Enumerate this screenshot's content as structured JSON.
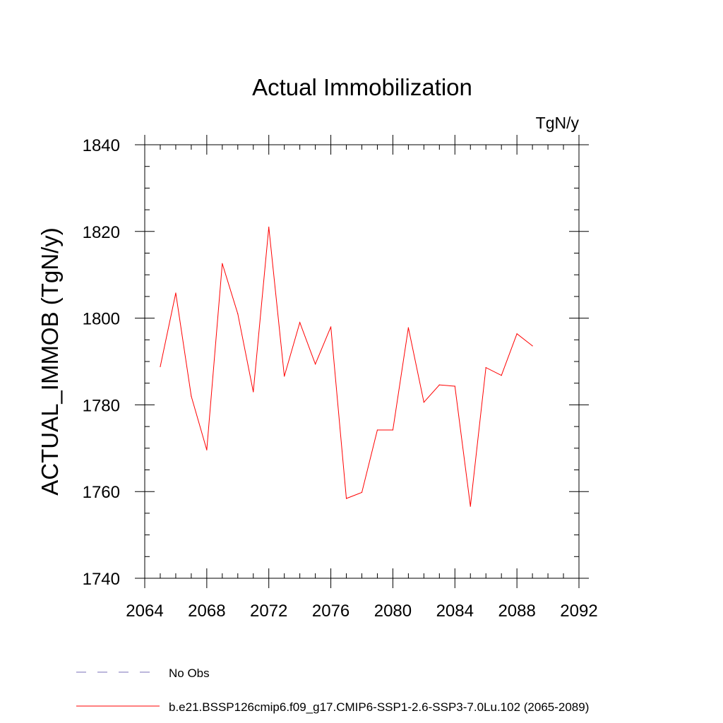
{
  "chart_data": {
    "type": "line",
    "title": "Actual Immobilization",
    "units_label": "TgN/y",
    "ylabel": "ACTUAL_IMMOB  (TgN/y)",
    "xlabel": "",
    "xlim": [
      2064,
      2092
    ],
    "ylim": [
      1740,
      1840
    ],
    "x_ticks": [
      2064,
      2068,
      2072,
      2076,
      2080,
      2084,
      2088,
      2092
    ],
    "x_tick_labels": [
      "2064",
      "2068",
      "2072",
      "2076",
      "2080",
      "2084",
      "2088",
      "2092"
    ],
    "x_minor_step": 1,
    "y_ticks": [
      1740,
      1760,
      1780,
      1800,
      1820,
      1840
    ],
    "y_tick_labels": [
      "1740",
      "1760",
      "1780",
      "1800",
      "1820",
      "1840"
    ],
    "y_minor_step": 5,
    "grid": false,
    "legend_position": "bottom-left",
    "series": [
      {
        "name": "b.e21.BSSP126cmip6.f09_g17.CMIP6-SSP1-2.6-SSP3-7.0Lu.102 (2065-2089)",
        "color": "#ff0000",
        "style": "solid",
        "x": [
          2065,
          2066,
          2067,
          2068,
          2069,
          2070,
          2071,
          2072,
          2073,
          2074,
          2075,
          2076,
          2077,
          2078,
          2079,
          2080,
          2081,
          2082,
          2083,
          2084,
          2085,
          2086,
          2087,
          2088,
          2089
        ],
        "values": [
          1788.8,
          1805.8,
          1782.0,
          1769.6,
          1812.6,
          1801.0,
          1783.0,
          1821.0,
          1786.6,
          1799.0,
          1789.4,
          1798.0,
          1758.4,
          1759.8,
          1774.2,
          1774.2,
          1797.8,
          1780.6,
          1784.6,
          1784.3,
          1756.6,
          1788.6,
          1786.8,
          1796.4,
          1793.6
        ]
      }
    ],
    "legend": [
      {
        "label": "No Obs",
        "color": "#7a6fb8",
        "style": "dashed"
      },
      {
        "label": "b.e21.BSSP126cmip6.f09_g17.CMIP6-SSP1-2.6-SSP3-7.0Lu.102 (2065-2089)",
        "color": "#ff0000",
        "style": "solid"
      }
    ]
  }
}
